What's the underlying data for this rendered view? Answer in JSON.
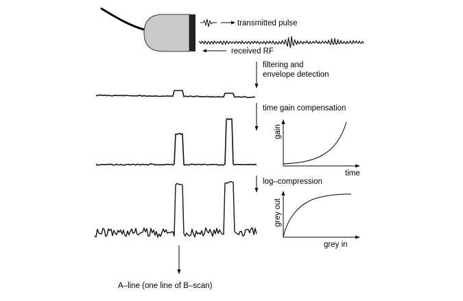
{
  "labels": {
    "transmitted_pulse": "transmitted pulse",
    "received_rf": "received RF",
    "filtering_line1": "filtering and",
    "filtering_line2": "envelope detection",
    "tgc": "time gain compensation",
    "log_compression": "log–compression",
    "a_line": "A–line (one line of B–scan)"
  },
  "tgc_plot": {
    "ylabel": "gain",
    "xlabel": "time"
  },
  "log_plot": {
    "ylabel": "grey out",
    "xlabel": "grey in"
  }
}
